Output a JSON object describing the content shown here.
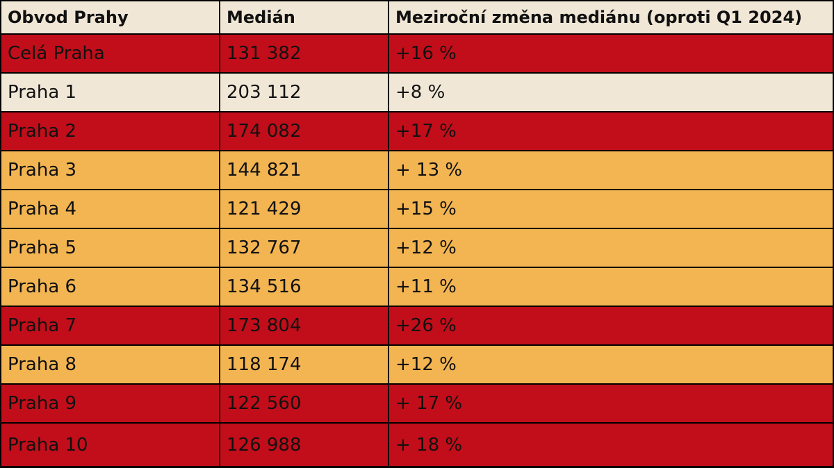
{
  "chart_data": {
    "type": "table",
    "columns": [
      "Obvod Prahy",
      "Medián",
      "Meziroční změna mediánu (oproti Q1 2024)"
    ],
    "rows": [
      {
        "district": "Celá Praha",
        "median": "131 382",
        "change": "+16 %",
        "color": "#c10e1a"
      },
      {
        "district": "Praha 1",
        "median": "203 112",
        "change": "+8 %",
        "color": "#f1e7d6"
      },
      {
        "district": "Praha 2",
        "median": "174 082",
        "change": "+17 %",
        "color": "#c10e1a"
      },
      {
        "district": "Praha 3",
        "median": "144 821",
        "change": "+ 13 %",
        "color": "#f3b552"
      },
      {
        "district": "Praha 4",
        "median": "121 429",
        "change": "+15 %",
        "color": "#f3b552"
      },
      {
        "district": "Praha 5",
        "median": "132 767",
        "change": "+12 %",
        "color": "#f3b552"
      },
      {
        "district": "Praha 6",
        "median": "134 516",
        "change": "+11 %",
        "color": "#f3b552"
      },
      {
        "district": "Praha 7",
        "median": "173 804",
        "change": "+26 %",
        "color": "#c10e1a"
      },
      {
        "district": "Praha 8",
        "median": "118 174",
        "change": "+12 %",
        "color": "#f3b552"
      },
      {
        "district": "Praha 9",
        "median": "122 560",
        "change": "+ 17 %",
        "color": "#c10e1a"
      },
      {
        "district": "Praha 10",
        "median": "126 988",
        "change": "+ 18 %",
        "color": "#c10e1a"
      }
    ]
  },
  "colors": {
    "header_bg": "#f1e7d6",
    "red": "#c10e1a",
    "cream": "#f1e7d6",
    "orange": "#f3b552",
    "border": "#000000"
  }
}
